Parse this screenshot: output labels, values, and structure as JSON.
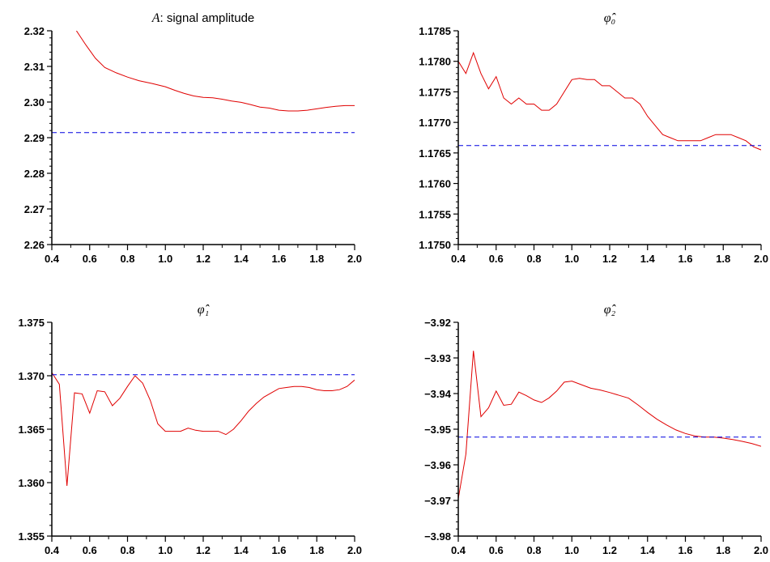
{
  "chart_data": [
    {
      "type": "line",
      "title_symbol": "A",
      "title": ": signal amplitude",
      "xlim": [
        0.4,
        2.0
      ],
      "ylim": [
        2.26,
        2.32
      ],
      "x_ticks": [
        "0.4",
        "0.6",
        "0.8",
        "1.0",
        "1.2",
        "1.4",
        "1.6",
        "1.8",
        "2.0"
      ],
      "y_ticks": [
        "2.26",
        "2.27",
        "2.28",
        "2.29",
        "2.30",
        "2.31",
        "2.32"
      ],
      "series": [
        {
          "x": [
            0.53,
            0.58,
            0.63,
            0.68,
            0.74,
            0.8,
            0.86,
            0.93,
            1.0,
            1.05,
            1.1,
            1.15,
            1.2,
            1.25,
            1.3,
            1.35,
            1.4,
            1.45,
            1.5,
            1.55,
            1.6,
            1.65,
            1.7,
            1.75,
            1.8,
            1.85,
            1.9,
            1.95,
            2.0
          ],
          "y": [
            2.32,
            2.316,
            2.3123,
            2.3097,
            2.3082,
            2.307,
            2.306,
            2.3052,
            2.3043,
            2.3033,
            2.3024,
            2.3017,
            2.3013,
            2.3012,
            2.3008,
            2.3003,
            2.2999,
            2.2993,
            2.2986,
            2.2983,
            2.2977,
            2.2975,
            2.2975,
            2.2977,
            2.2981,
            2.2985,
            2.2988,
            2.299,
            2.299
          ],
          "color": "#e00000",
          "style": "solid"
        },
        {
          "x": [
            0.4,
            2.0
          ],
          "y": [
            2.2914,
            2.2914
          ],
          "color": "#0000e0",
          "style": "dashed"
        }
      ]
    },
    {
      "type": "line",
      "title_symbol": "φ̂₀",
      "title": "",
      "xlim": [
        0.4,
        2.0
      ],
      "ylim": [
        1.175,
        1.1785
      ],
      "x_ticks": [
        "0.4",
        "0.6",
        "0.8",
        "1.0",
        "1.2",
        "1.4",
        "1.6",
        "1.8",
        "2.0"
      ],
      "y_ticks": [
        "1.1750",
        "1.1755",
        "1.1760",
        "1.1765",
        "1.1770",
        "1.1775",
        "1.1780",
        "1.1785"
      ],
      "series": [
        {
          "x": [
            0.4,
            0.44,
            0.48,
            0.52,
            0.56,
            0.6,
            0.64,
            0.68,
            0.72,
            0.76,
            0.8,
            0.84,
            0.88,
            0.92,
            0.96,
            1.0,
            1.04,
            1.08,
            1.12,
            1.16,
            1.2,
            1.24,
            1.28,
            1.32,
            1.36,
            1.4,
            1.44,
            1.48,
            1.52,
            1.56,
            1.6,
            1.64,
            1.68,
            1.72,
            1.76,
            1.8,
            1.84,
            1.88,
            1.92,
            1.96,
            2.0
          ],
          "y": [
            1.178,
            1.1778,
            1.17814,
            1.1778,
            1.17755,
            1.17775,
            1.1774,
            1.1773,
            1.1774,
            1.1773,
            1.1773,
            1.1772,
            1.1772,
            1.1773,
            1.1775,
            1.1777,
            1.17772,
            1.1777,
            1.1777,
            1.1776,
            1.1776,
            1.1775,
            1.1774,
            1.1774,
            1.1773,
            1.1771,
            1.17695,
            1.1768,
            1.17675,
            1.1767,
            1.1767,
            1.1767,
            1.1767,
            1.17675,
            1.1768,
            1.1768,
            1.1768,
            1.17675,
            1.1767,
            1.1766,
            1.17655
          ],
          "color": "#e00000",
          "style": "solid"
        },
        {
          "x": [
            0.4,
            2.0
          ],
          "y": [
            1.17662,
            1.17662
          ],
          "color": "#0000e0",
          "style": "dashed"
        }
      ]
    },
    {
      "type": "line",
      "title_symbol": "φ̂₁",
      "title": "",
      "xlim": [
        0.4,
        2.0
      ],
      "ylim": [
        1.355,
        1.375
      ],
      "x_ticks": [
        "0.4",
        "0.6",
        "0.8",
        "1.0",
        "1.2",
        "1.4",
        "1.6",
        "1.8",
        "2.0"
      ],
      "y_ticks": [
        "1.355",
        "1.360",
        "1.365",
        "1.370",
        "1.375"
      ],
      "series": [
        {
          "x": [
            0.4,
            0.44,
            0.48,
            0.52,
            0.56,
            0.6,
            0.64,
            0.68,
            0.72,
            0.76,
            0.8,
            0.84,
            0.88,
            0.92,
            0.96,
            1.0,
            1.04,
            1.08,
            1.12,
            1.16,
            1.2,
            1.24,
            1.28,
            1.32,
            1.36,
            1.4,
            1.44,
            1.48,
            1.52,
            1.56,
            1.6,
            1.64,
            1.68,
            1.72,
            1.76,
            1.8,
            1.84,
            1.88,
            1.92,
            1.96,
            2.0
          ],
          "y": [
            1.3703,
            1.3692,
            1.3597,
            1.3684,
            1.3683,
            1.3665,
            1.3686,
            1.3685,
            1.3672,
            1.3679,
            1.369,
            1.37,
            1.3693,
            1.3677,
            1.3655,
            1.3648,
            1.3648,
            1.3648,
            1.3651,
            1.3649,
            1.3648,
            1.3648,
            1.3648,
            1.3645,
            1.365,
            1.3658,
            1.3667,
            1.3674,
            1.368,
            1.3684,
            1.3688,
            1.3689,
            1.369,
            1.369,
            1.3689,
            1.3687,
            1.3686,
            1.3686,
            1.3687,
            1.369,
            1.3696
          ],
          "color": "#e00000",
          "style": "solid"
        },
        {
          "x": [
            0.4,
            2.0
          ],
          "y": [
            1.3701,
            1.3701
          ],
          "color": "#0000e0",
          "style": "dashed"
        }
      ]
    },
    {
      "type": "line",
      "title_symbol": "φ̂₂",
      "title": "",
      "xlim": [
        0.4,
        2.0
      ],
      "ylim": [
        -3.98,
        -3.92
      ],
      "x_ticks": [
        "0.4",
        "0.6",
        "0.8",
        "1.0",
        "1.2",
        "1.4",
        "1.6",
        "1.8",
        "2.0"
      ],
      "y_ticks": [
        "−3.98",
        "−3.97",
        "−3.96",
        "−3.95",
        "−3.94",
        "−3.93",
        "−3.92"
      ],
      "series": [
        {
          "x": [
            0.4,
            0.44,
            0.48,
            0.52,
            0.56,
            0.6,
            0.64,
            0.68,
            0.72,
            0.76,
            0.8,
            0.84,
            0.88,
            0.92,
            0.96,
            1.0,
            1.05,
            1.1,
            1.15,
            1.2,
            1.25,
            1.3,
            1.35,
            1.4,
            1.45,
            1.5,
            1.55,
            1.6,
            1.65,
            1.7,
            1.75,
            1.8,
            1.85,
            1.9,
            1.95,
            2.0
          ],
          "y": [
            -3.9695,
            -3.957,
            -3.928,
            -3.9465,
            -3.944,
            -3.9393,
            -3.9433,
            -3.943,
            -3.9396,
            -3.9406,
            -3.9418,
            -3.9425,
            -3.9412,
            -3.9393,
            -3.9368,
            -3.9365,
            -3.9375,
            -3.9385,
            -3.939,
            -3.9397,
            -3.9405,
            -3.9413,
            -3.9432,
            -3.9453,
            -3.9472,
            -3.9488,
            -3.9502,
            -3.9512,
            -3.9519,
            -3.9522,
            -3.9522,
            -3.9525,
            -3.9529,
            -3.9534,
            -3.954,
            -3.9548
          ],
          "color": "#e00000",
          "style": "solid"
        },
        {
          "x": [
            0.4,
            2.0
          ],
          "y": [
            -3.9522,
            -3.9522
          ],
          "color": "#0000e0",
          "style": "dashed"
        }
      ]
    }
  ]
}
